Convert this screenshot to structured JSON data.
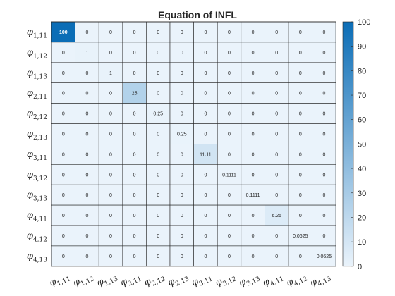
{
  "chart_data": {
    "type": "heatmap",
    "title": "Equation of INFL",
    "x_labels": [
      {
        "base": "φ",
        "sub": "1,11"
      },
      {
        "base": "φ",
        "sub": "1,12"
      },
      {
        "base": "φ",
        "sub": "1,13"
      },
      {
        "base": "φ",
        "sub": "2,11"
      },
      {
        "base": "φ",
        "sub": "2,12"
      },
      {
        "base": "φ",
        "sub": "2,13"
      },
      {
        "base": "φ",
        "sub": "3,11"
      },
      {
        "base": "φ",
        "sub": "3,12"
      },
      {
        "base": "φ",
        "sub": "3,13"
      },
      {
        "base": "φ",
        "sub": "4,11"
      },
      {
        "base": "φ",
        "sub": "4,12"
      },
      {
        "base": "φ",
        "sub": "4,13"
      }
    ],
    "y_labels": [
      {
        "base": "φ",
        "sub": "1,11"
      },
      {
        "base": "φ",
        "sub": "1,12"
      },
      {
        "base": "φ",
        "sub": "1,13"
      },
      {
        "base": "φ",
        "sub": "2,11"
      },
      {
        "base": "φ",
        "sub": "2,12"
      },
      {
        "base": "φ",
        "sub": "2,13"
      },
      {
        "base": "φ",
        "sub": "3,11"
      },
      {
        "base": "φ",
        "sub": "3,12"
      },
      {
        "base": "φ",
        "sub": "3,13"
      },
      {
        "base": "φ",
        "sub": "4,11"
      },
      {
        "base": "φ",
        "sub": "4,12"
      },
      {
        "base": "φ",
        "sub": "4,13"
      }
    ],
    "values": [
      [
        100,
        0,
        0,
        0,
        0,
        0,
        0,
        0,
        0,
        0,
        0,
        0
      ],
      [
        0,
        1,
        0,
        0,
        0,
        0,
        0,
        0,
        0,
        0,
        0,
        0
      ],
      [
        0,
        0,
        1,
        0,
        0,
        0,
        0,
        0,
        0,
        0,
        0,
        0
      ],
      [
        0,
        0,
        0,
        25,
        0,
        0,
        0,
        0,
        0,
        0,
        0,
        0
      ],
      [
        0,
        0,
        0,
        0,
        0.25,
        0,
        0,
        0,
        0,
        0,
        0,
        0
      ],
      [
        0,
        0,
        0,
        0,
        0,
        0.25,
        0,
        0,
        0,
        0,
        0,
        0
      ],
      [
        0,
        0,
        0,
        0,
        0,
        0,
        11.11,
        0,
        0,
        0,
        0,
        0
      ],
      [
        0,
        0,
        0,
        0,
        0,
        0,
        0,
        0.1111,
        0,
        0,
        0,
        0
      ],
      [
        0,
        0,
        0,
        0,
        0,
        0,
        0,
        0,
        0.1111,
        0,
        0,
        0
      ],
      [
        0,
        0,
        0,
        0,
        0,
        0,
        0,
        0,
        0,
        6.25,
        0,
        0
      ],
      [
        0,
        0,
        0,
        0,
        0,
        0,
        0,
        0,
        0,
        0,
        0.0625,
        0
      ],
      [
        0,
        0,
        0,
        0,
        0,
        0,
        0,
        0,
        0,
        0,
        0,
        0.0625
      ]
    ],
    "colorbar": {
      "range": [
        0,
        100
      ],
      "ticks": [
        0,
        10,
        20,
        30,
        40,
        50,
        60,
        70,
        80,
        90,
        100
      ],
      "color_low": "#eaf3fb",
      "color_high": "#0b6db6",
      "placement": "right"
    },
    "grid": true
  }
}
